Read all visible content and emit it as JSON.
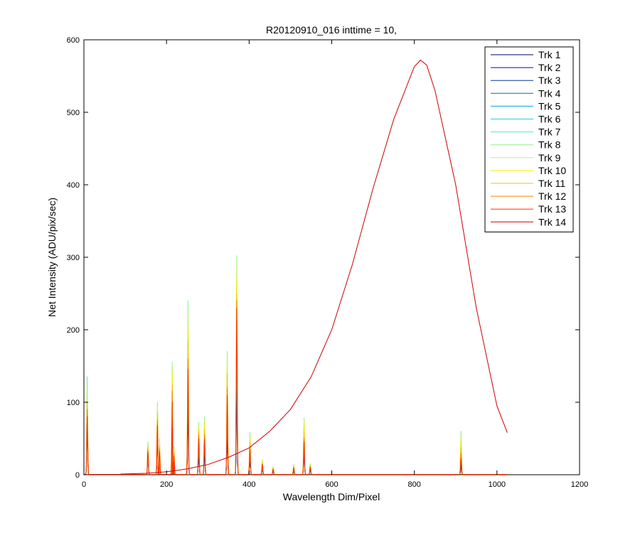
{
  "chart_data": {
    "type": "line",
    "title": "R20120910_016 inttime = 10,",
    "xlabel": "Wavelength Dim/Pixel",
    "ylabel": "Net Intensity (ADU/pix/sec)",
    "xlim": [
      0,
      1200
    ],
    "ylim": [
      0,
      600
    ],
    "xticks": [
      0,
      200,
      400,
      600,
      800,
      1000,
      1200
    ],
    "yticks": [
      0,
      100,
      200,
      300,
      400,
      500,
      600
    ],
    "grid": false,
    "legend_position": "top-right",
    "peaks": [
      {
        "x": 8,
        "values": [
          70,
          80,
          90,
          100,
          115,
          125,
          135,
          130,
          120,
          110,
          100,
          90,
          80,
          70
        ]
      },
      {
        "x": 155,
        "values": [
          28,
          30,
          33,
          36,
          40,
          43,
          45,
          44,
          42,
          40,
          37,
          35,
          32,
          30
        ]
      },
      {
        "x": 178,
        "values": [
          50,
          55,
          60,
          66,
          73,
          80,
          90,
          100,
          95,
          90,
          85,
          75,
          68,
          60
        ]
      },
      {
        "x": 183,
        "values": [
          25,
          28,
          32,
          36,
          40,
          44,
          48,
          50,
          47,
          44,
          40,
          36,
          32,
          28
        ]
      },
      {
        "x": 214,
        "values": [
          45,
          55,
          65,
          78,
          95,
          115,
          140,
          155,
          150,
          140,
          125,
          115,
          100,
          95
        ]
      },
      {
        "x": 218,
        "values": [
          18,
          20,
          23,
          26,
          30,
          33,
          36,
          38,
          36,
          34,
          31,
          28,
          25,
          22
        ]
      },
      {
        "x": 252,
        "values": [
          80,
          100,
          115,
          135,
          160,
          180,
          200,
          240,
          220,
          200,
          185,
          160,
          145,
          130
        ]
      },
      {
        "x": 278,
        "values": [
          30,
          35,
          40,
          48,
          55,
          62,
          70,
          72,
          68,
          64,
          60,
          55,
          50,
          45
        ]
      },
      {
        "x": 292,
        "values": [
          30,
          35,
          40,
          47,
          55,
          62,
          70,
          80,
          75,
          70,
          62,
          55,
          48,
          42
        ]
      },
      {
        "x": 347,
        "values": [
          60,
          70,
          80,
          95,
          110,
          125,
          140,
          170,
          160,
          150,
          140,
          120,
          110,
          100
        ]
      },
      {
        "x": 370,
        "values": [
          110,
          130,
          150,
          175,
          200,
          230,
          260,
          302,
          290,
          270,
          250,
          240,
          230,
          220
        ]
      },
      {
        "x": 402,
        "values": [
          22,
          25,
          29,
          33,
          38,
          43,
          50,
          58,
          55,
          50,
          45,
          40,
          35,
          30
        ]
      },
      {
        "x": 432,
        "values": [
          8,
          9,
          10,
          12,
          14,
          16,
          18,
          20,
          19,
          18,
          16,
          15,
          14,
          13
        ]
      },
      {
        "x": 458,
        "values": [
          5,
          5,
          6,
          7,
          8,
          9,
          10,
          11,
          10,
          10,
          9,
          8,
          7,
          6
        ]
      },
      {
        "x": 508,
        "values": [
          5,
          6,
          7,
          8,
          9,
          10,
          12,
          14,
          13,
          12,
          11,
          10,
          9,
          8
        ]
      },
      {
        "x": 533,
        "values": [
          30,
          35,
          40,
          47,
          55,
          62,
          70,
          78,
          75,
          70,
          60,
          50,
          45,
          40
        ]
      },
      {
        "x": 548,
        "values": [
          6,
          7,
          8,
          9,
          11,
          12,
          14,
          15,
          14,
          13,
          12,
          11,
          10,
          9
        ]
      },
      {
        "x": 913,
        "values": [
          10,
          12,
          15,
          20,
          28,
          36,
          45,
          60,
          55,
          45,
          38,
          30,
          22,
          15
        ]
      }
    ],
    "series": [
      {
        "name": "Trk 1",
        "color": "#00007f"
      },
      {
        "name": "Trk 2",
        "color": "#0000c8"
      },
      {
        "name": "Trk 3",
        "color": "#0a3aa0"
      },
      {
        "name": "Trk 4",
        "color": "#0070b0"
      },
      {
        "name": "Trk 5",
        "color": "#00a8d8"
      },
      {
        "name": "Trk 6",
        "color": "#20d0e0"
      },
      {
        "name": "Trk 7",
        "color": "#50e8d8"
      },
      {
        "name": "Trk 8",
        "color": "#90f090"
      },
      {
        "name": "Trk 9",
        "color": "#c8f060"
      },
      {
        "name": "Trk 10",
        "color": "#f0f000"
      },
      {
        "name": "Trk 11",
        "color": "#ffc000"
      },
      {
        "name": "Trk 12",
        "color": "#ff8000"
      },
      {
        "name": "Trk 13",
        "color": "#ff3000"
      },
      {
        "name": "Trk 14",
        "color": "#cc0000"
      }
    ],
    "trk14_curve": {
      "x": [
        90,
        150,
        200,
        250,
        300,
        350,
        400,
        450,
        500,
        550,
        600,
        650,
        700,
        750,
        800,
        815,
        830,
        850,
        900,
        950,
        1000,
        1025
      ],
      "y": [
        1,
        2,
        4,
        8,
        14,
        24,
        37,
        60,
        90,
        135,
        200,
        290,
        395,
        490,
        563,
        572,
        565,
        530,
        400,
        230,
        95,
        58
      ]
    }
  }
}
